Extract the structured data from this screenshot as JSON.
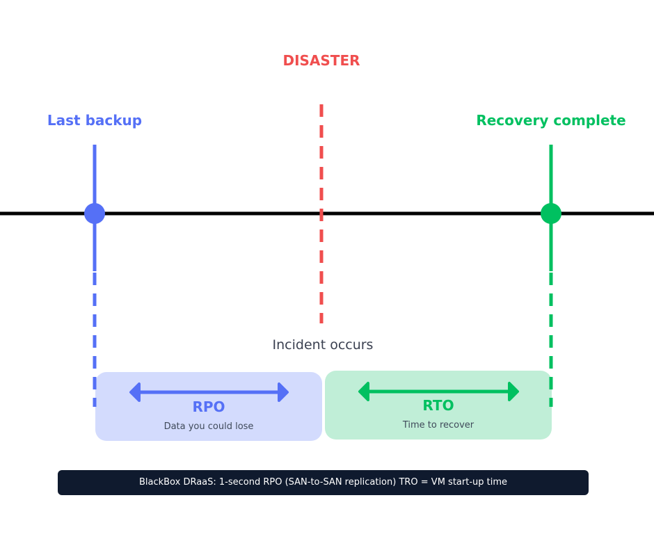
{
  "labels": {
    "disaster": "DISASTER",
    "last_backup": "Last backup",
    "recovery_complete": "Recovery complete",
    "incident": "Incident occurs"
  },
  "rpo": {
    "title": "RPO",
    "subtitle": "Data you could lose"
  },
  "rto": {
    "title": "RTO",
    "subtitle": "Time to recover"
  },
  "footer": "BlackBox DRaaS: 1-second RPO (SAN-to-SAN replication) TRO = VM start-up time",
  "colors": {
    "blue": "#5570f6",
    "red": "#f04e4e",
    "green": "#00c060",
    "timeline": "#000000",
    "rpo_bg": "#d3dbfd",
    "rto_bg": "#c0eed7",
    "footer_bg": "#0f1a2e"
  }
}
